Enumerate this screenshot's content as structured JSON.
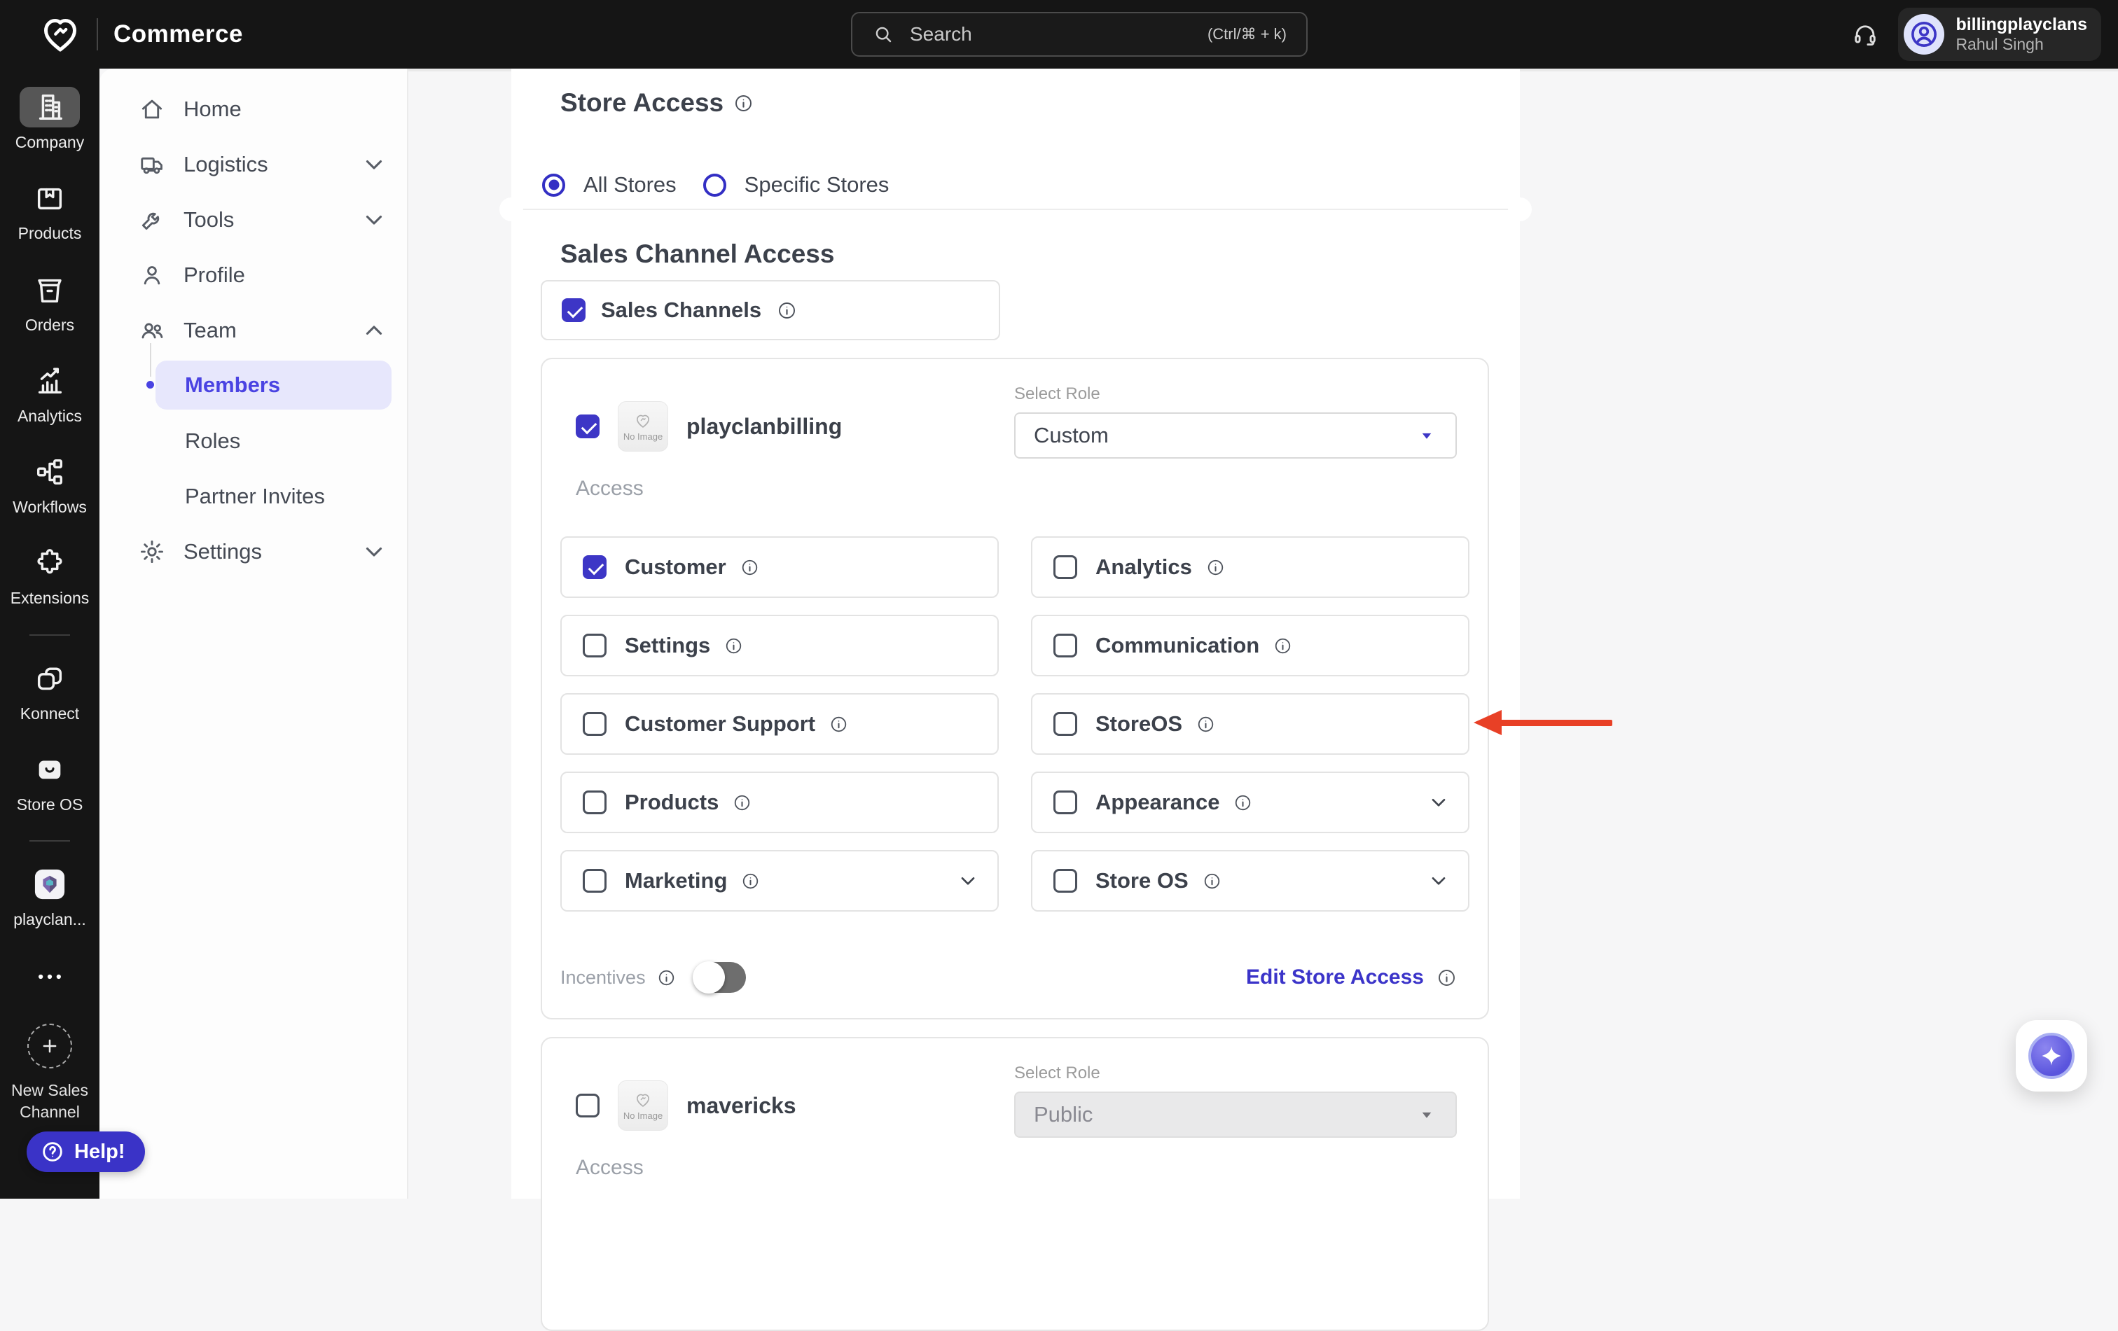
{
  "header": {
    "brand": "Commerce",
    "search": {
      "placeholder": "Search",
      "shortcut_hint": "(Ctrl/⌘ + k)"
    },
    "user": {
      "account": "billingplayclans",
      "name": "Rahul Singh"
    }
  },
  "primary_sidebar": {
    "items": [
      {
        "label": "Company",
        "icon": "building",
        "active": true
      },
      {
        "label": "Products",
        "icon": "package"
      },
      {
        "label": "Orders",
        "icon": "order-box"
      },
      {
        "label": "Analytics",
        "icon": "chart"
      },
      {
        "label": "Workflows",
        "icon": "workflow"
      },
      {
        "label": "Extensions",
        "icon": "puzzle"
      },
      {
        "label": "Konnect",
        "icon": "konnect",
        "divider_before": true
      },
      {
        "label": "Store OS",
        "icon": "storeos"
      },
      {
        "label": "playclan...",
        "icon": "playclan-app",
        "divider_before": true
      }
    ],
    "new_sales_channel_label": "New Sales Channel"
  },
  "secondary_nav": {
    "items": [
      {
        "label": "Home",
        "icon": "home"
      },
      {
        "label": "Logistics",
        "icon": "truck",
        "chevron": "chevron-down"
      },
      {
        "label": "Tools",
        "icon": "wrench",
        "chevron": "chevron-down"
      },
      {
        "label": "Profile",
        "icon": "person"
      },
      {
        "label": "Team",
        "icon": "people",
        "chevron": "chevron-up"
      },
      {
        "label": "Members",
        "child": true,
        "active": true
      },
      {
        "label": "Roles",
        "child": true
      },
      {
        "label": "Partner Invites",
        "child": true
      },
      {
        "label": "Settings",
        "icon": "gear",
        "chevron": "chevron-down"
      }
    ]
  },
  "content": {
    "store_access": {
      "title": "Store Access",
      "options": [
        {
          "label": "All Stores",
          "selected": true
        },
        {
          "label": "Specific Stores",
          "selected": false
        }
      ]
    },
    "sales_channel_access": {
      "title": "Sales Channel Access",
      "master_checkbox": {
        "label": "Sales Channels",
        "checked": true
      }
    },
    "channels": [
      {
        "name": "playclanbilling",
        "checked": true,
        "thumbnail_text": "No Image",
        "role_label": "Select Role",
        "role_value": "Custom",
        "role_disabled": false,
        "access_label": "Access",
        "permissions": [
          {
            "label": "Customer",
            "checked": true
          },
          {
            "label": "Analytics",
            "checked": false
          },
          {
            "label": "Settings",
            "checked": false
          },
          {
            "label": "Communication",
            "checked": false
          },
          {
            "label": "Customer Support",
            "checked": false
          },
          {
            "label": "StoreOS",
            "checked": false
          },
          {
            "label": "Products",
            "checked": false
          },
          {
            "label": "Appearance",
            "checked": false,
            "expandable": true
          },
          {
            "label": "Marketing",
            "checked": false,
            "expandable": true
          },
          {
            "label": "Store OS",
            "checked": false,
            "expandable": true
          }
        ],
        "incentives": {
          "label": "Incentives",
          "enabled": false
        },
        "edit_store_access_label": "Edit Store Access"
      },
      {
        "name": "mavericks",
        "checked": false,
        "thumbnail_text": "No Image",
        "role_label": "Select Role",
        "role_value": "Public",
        "role_disabled": true,
        "access_label": "Access"
      }
    ]
  },
  "help_button": {
    "label": "Help!"
  },
  "colors": {
    "accent": "#3d36c6",
    "members_highlight": "#e7e7fc",
    "annotation_arrow": "#e84026",
    "header_bg": "#151515"
  }
}
